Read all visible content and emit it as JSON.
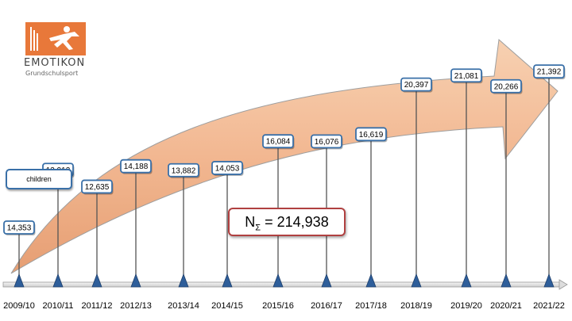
{
  "logo": {
    "name": "ΕMOTIKON",
    "subtitle": "Grundschulsport",
    "brand_color": "#e8783a"
  },
  "legend": {
    "label": "children"
  },
  "total": {
    "prefix": "N",
    "subscript": "Σ",
    "value_text": "= 214,938"
  },
  "colors": {
    "box_border": "#3a70a8",
    "total_border": "#b04040",
    "arrow_fill": "#f2b48c",
    "stem": "#555555",
    "marker": "#2e5e9a"
  },
  "chart_data": {
    "type": "bar",
    "categories": [
      "2009/10",
      "2010/11",
      "2011/12",
      "2012/13",
      "2013/14",
      "2014/15",
      "2015/16",
      "2016/17",
      "2017/18",
      "2018/19",
      "2019/20",
      "2020/21",
      "2021/22"
    ],
    "series": [
      {
        "name": "children",
        "values": [
          14353,
          13912,
          12635,
          14188,
          13882,
          14053,
          16084,
          16076,
          16619,
          20397,
          21081,
          20266,
          21392
        ]
      }
    ],
    "value_labels": [
      "14,353",
      "13,912",
      "12,635",
      "14,188",
      "13,882",
      "14,053",
      "16,084",
      "16,076",
      "16,619",
      "20,397",
      "21,081",
      "20,266",
      "21,392"
    ],
    "title": "",
    "xlabel": "",
    "ylabel": ""
  }
}
